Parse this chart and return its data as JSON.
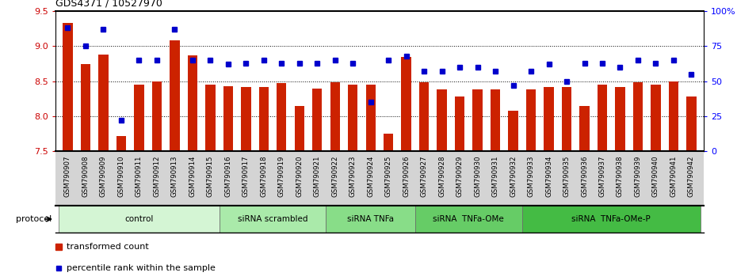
{
  "title": "GDS4371 / 10527970",
  "samples": [
    "GSM790907",
    "GSM790908",
    "GSM790909",
    "GSM790910",
    "GSM790911",
    "GSM790912",
    "GSM790913",
    "GSM790914",
    "GSM790915",
    "GSM790916",
    "GSM790917",
    "GSM790918",
    "GSM790919",
    "GSM790920",
    "GSM790921",
    "GSM790922",
    "GSM790923",
    "GSM790924",
    "GSM790925",
    "GSM790926",
    "GSM790927",
    "GSM790928",
    "GSM790929",
    "GSM790930",
    "GSM790931",
    "GSM790932",
    "GSM790933",
    "GSM790934",
    "GSM790935",
    "GSM790936",
    "GSM790937",
    "GSM790938",
    "GSM790939",
    "GSM790940",
    "GSM790941",
    "GSM790942"
  ],
  "bar_values": [
    9.33,
    8.75,
    8.88,
    7.72,
    8.45,
    8.5,
    9.08,
    8.87,
    8.45,
    8.43,
    8.42,
    8.42,
    8.47,
    8.15,
    8.4,
    8.48,
    8.45,
    8.45,
    7.75,
    8.85,
    8.48,
    8.38,
    8.28,
    8.38,
    8.38,
    8.08,
    8.38,
    8.42,
    8.42,
    8.15,
    8.45,
    8.42,
    8.48,
    8.45,
    8.5,
    8.28
  ],
  "percentile_values": [
    88,
    75,
    87,
    22,
    65,
    65,
    87,
    65,
    65,
    62,
    63,
    65,
    63,
    63,
    63,
    65,
    63,
    35,
    65,
    68,
    57,
    57,
    60,
    60,
    57,
    47,
    57,
    62,
    50,
    63,
    63,
    60,
    65,
    63,
    65,
    55
  ],
  "ylim_left": [
    7.5,
    9.5
  ],
  "yticks_left": [
    7.5,
    8.0,
    8.5,
    9.0,
    9.5
  ],
  "yticks_right": [
    0,
    25,
    50,
    75,
    100
  ],
  "bar_color": "#cc2200",
  "dot_color": "#0000cc",
  "xtick_bg": "#d4d4d4",
  "protocol_groups": [
    {
      "label": "control",
      "start": 0,
      "end": 8,
      "color": "#d4f5d4"
    },
    {
      "label": "siRNA scrambled",
      "start": 9,
      "end": 14,
      "color": "#aaeaaa"
    },
    {
      "label": "siRNA TNFa",
      "start": 15,
      "end": 19,
      "color": "#88dd88"
    },
    {
      "label": "siRNA  TNFa-OMe",
      "start": 20,
      "end": 25,
      "color": "#66cc66"
    },
    {
      "label": "siRNA  TNFa-OMe-P",
      "start": 26,
      "end": 35,
      "color": "#44bb44"
    }
  ],
  "legend_bar_label": "transformed count",
  "legend_dot_label": "percentile rank within the sample"
}
